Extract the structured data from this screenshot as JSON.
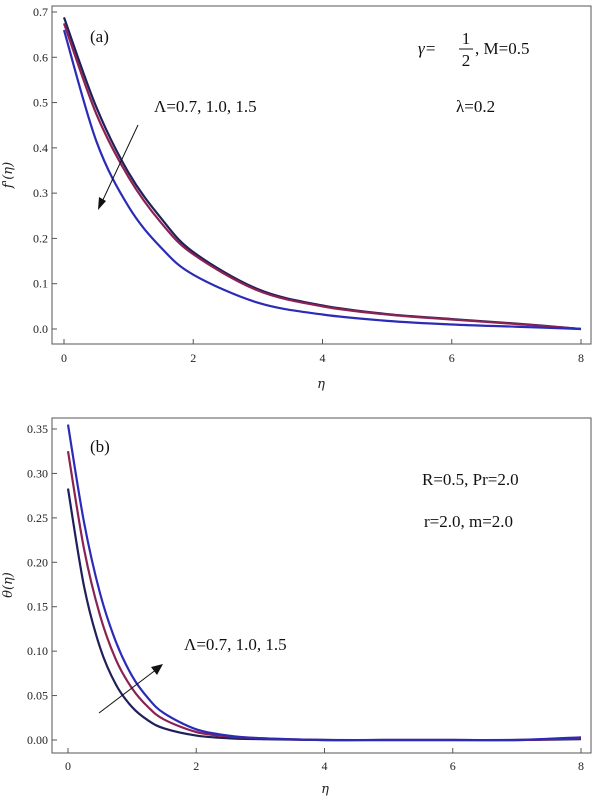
{
  "chart_data": [
    {
      "type": "line",
      "panel_label": "(a)",
      "xlabel": "η",
      "ylabel": "f'(η)",
      "xlim": [
        0,
        8
      ],
      "ylim": [
        0,
        0.7
      ],
      "x_ticks": [
        "0",
        "2",
        "4",
        "6",
        "8"
      ],
      "y_ticks": [
        "0.0",
        "0.1",
        "0.2",
        "0.3",
        "0.4",
        "0.5",
        "0.6",
        "0.7"
      ],
      "grid": false,
      "annotations": {
        "param_label": "Λ=0.7, 1.0, 1.5",
        "gamma_prefix": "γ=",
        "gamma_num": "1",
        "gamma_den": "2",
        "gamma_suffix": ", M=0.5",
        "lambda_text": "λ=0.2"
      },
      "series": [
        {
          "color": "#1f1f5a",
          "x": [
            0,
            0.5,
            1,
            1.5,
            2,
            3,
            4,
            5,
            6,
            7,
            8
          ],
          "y": [
            0.688,
            0.49,
            0.345,
            0.245,
            0.17,
            0.088,
            0.052,
            0.033,
            0.022,
            0.012,
            0.0
          ]
        },
        {
          "color": "#8b2252",
          "x": [
            0,
            0.5,
            1,
            1.5,
            2,
            3,
            4,
            5,
            6,
            7,
            8
          ],
          "y": [
            0.675,
            0.475,
            0.335,
            0.235,
            0.165,
            0.085,
            0.05,
            0.032,
            0.021,
            0.011,
            0.0
          ]
        },
        {
          "color": "#2b2bb8",
          "x": [
            0,
            0.5,
            1,
            1.5,
            2,
            3,
            4,
            5,
            6,
            7,
            8
          ],
          "y": [
            0.66,
            0.415,
            0.27,
            0.18,
            0.12,
            0.058,
            0.032,
            0.018,
            0.01,
            0.005,
            0.0
          ]
        }
      ]
    },
    {
      "type": "line",
      "panel_label": "(b)",
      "xlabel": "η",
      "ylabel": "θ(η)",
      "xlim": [
        0,
        8
      ],
      "ylim": [
        0,
        0.35
      ],
      "x_ticks": [
        "0",
        "2",
        "4",
        "6",
        "8"
      ],
      "y_ticks": [
        "0.00",
        "0.05",
        "0.10",
        "0.15",
        "0.20",
        "0.25",
        "0.30",
        "0.35"
      ],
      "grid": false,
      "annotations": {
        "param_label": "Λ=0.7, 1.0, 1.5",
        "text1": "R=0.5, Pr=2.0",
        "text2": "r=2.0, m=2.0"
      },
      "series": [
        {
          "color": "#1f1f5a",
          "x": [
            0,
            0.25,
            0.5,
            0.75,
            1,
            1.25,
            1.5,
            2,
            2.5,
            3,
            4,
            5,
            6,
            7,
            8
          ],
          "y": [
            0.283,
            0.173,
            0.104,
            0.062,
            0.037,
            0.022,
            0.013,
            0.005,
            0.002,
            0.001,
            0.0,
            0.0,
            0.0,
            0.0,
            0.001
          ]
        },
        {
          "color": "#8b2252",
          "x": [
            0,
            0.25,
            0.5,
            0.75,
            1,
            1.25,
            1.5,
            2,
            2.5,
            3,
            4,
            5,
            6,
            7,
            8
          ],
          "y": [
            0.325,
            0.215,
            0.14,
            0.09,
            0.058,
            0.037,
            0.023,
            0.009,
            0.004,
            0.002,
            0.0,
            0.0,
            0.0,
            0.0,
            0.002
          ]
        },
        {
          "color": "#2b2bb8",
          "x": [
            0,
            0.25,
            0.5,
            0.75,
            1,
            1.25,
            1.5,
            2,
            2.5,
            3,
            4,
            5,
            6,
            7,
            8
          ],
          "y": [
            0.355,
            0.245,
            0.165,
            0.11,
            0.072,
            0.047,
            0.03,
            0.012,
            0.005,
            0.002,
            0.0,
            0.0,
            0.0,
            0.0,
            0.003
          ]
        }
      ]
    }
  ]
}
